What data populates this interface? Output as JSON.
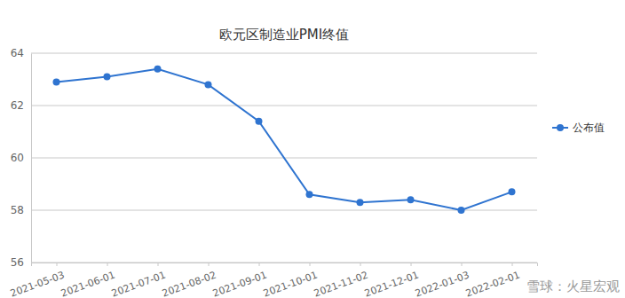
{
  "chart_data": {
    "type": "line",
    "title": "欧元区制造业PMI终值",
    "categories": [
      "2021-05-03",
      "2021-06-01",
      "2021-07-01",
      "2021-08-02",
      "2021-09-01",
      "2021-10-01",
      "2021-11-02",
      "2021-12-01",
      "2022-01-03",
      "2022-02-01"
    ],
    "series": [
      {
        "name": "公布值",
        "color": "#2f74d0",
        "marker": "circle",
        "values": [
          62.9,
          63.1,
          63.4,
          62.8,
          61.4,
          58.6,
          58.3,
          58.4,
          58.0,
          58.7
        ]
      }
    ],
    "ylim": [
      56,
      64
    ],
    "yticks": [
      56,
      58,
      60,
      62,
      64
    ],
    "grid": true,
    "legend": "right",
    "annotations": [
      "雪球：火星宏观"
    ]
  }
}
